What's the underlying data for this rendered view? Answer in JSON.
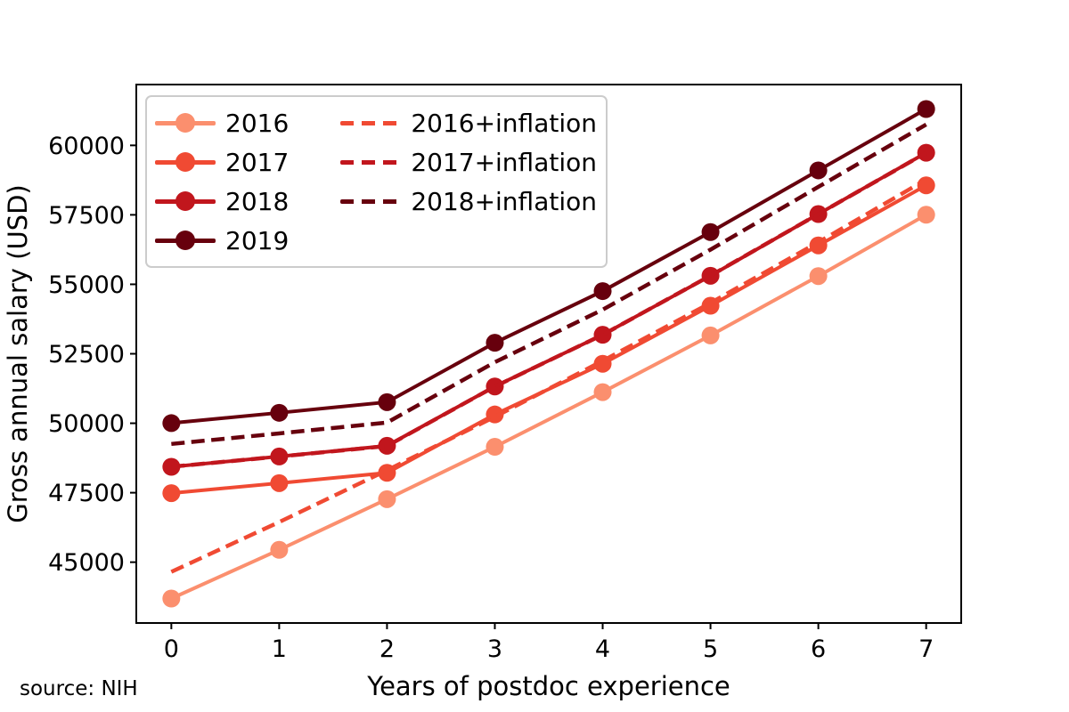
{
  "figure": {
    "source_note": "source: NIH"
  },
  "chart_data": {
    "type": "line",
    "title": "",
    "xlabel": "Years of postdoc experience",
    "ylabel": "Gross annual salary (USD)",
    "grid": false,
    "legend_position": "upper-left",
    "x": [
      0,
      1,
      2,
      3,
      4,
      5,
      6,
      7
    ],
    "xlim": [
      -0.325,
      7.325
    ],
    "ylim": [
      42811,
      62189
    ],
    "xticks": [
      "0",
      "1",
      "2",
      "3",
      "4",
      "5",
      "6",
      "7"
    ],
    "yticks": [
      45000,
      47500,
      50000,
      52500,
      55000,
      57500,
      60000
    ],
    "ytick_labels": [
      "45000",
      "47500",
      "50000",
      "52500",
      "55000",
      "57500",
      "60000"
    ],
    "series": [
      {
        "name": "2016",
        "style": "solid",
        "marker": true,
        "color": "#FB8F6E",
        "values": [
          43692,
          45444,
          47268,
          49152,
          51120,
          53160,
          55296,
          57504
        ]
      },
      {
        "name": "2017",
        "style": "solid",
        "marker": true,
        "color": "#F04A33",
        "values": [
          47484,
          47844,
          48216,
          50316,
          52140,
          54228,
          56400,
          58560
        ]
      },
      {
        "name": "2018",
        "style": "solid",
        "marker": true,
        "color": "#C1161D",
        "values": [
          48432,
          48804,
          49188,
          51324,
          53184,
          55308,
          57528,
          59736
        ]
      },
      {
        "name": "2019",
        "style": "solid",
        "marker": true,
        "color": "#67000D",
        "values": [
          50004,
          50376,
          50760,
          52896,
          54756,
          56880,
          59100,
          61308
        ]
      },
      {
        "name": "2016+inflation",
        "style": "dashed",
        "marker": false,
        "color": "#F04A33",
        "values": [
          44653,
          46444,
          48308,
          50233,
          52245,
          54330,
          56513,
          58769
        ]
      },
      {
        "name": "2017+inflation",
        "style": "dashed",
        "marker": false,
        "color": "#C1161D",
        "values": [
          48434,
          48801,
          49180,
          51322,
          53183,
          55313,
          57528,
          59731
        ]
      },
      {
        "name": "2018+inflation",
        "style": "dashed",
        "marker": false,
        "color": "#67000D",
        "values": [
          49255,
          49634,
          50024,
          52197,
          54088,
          56248,
          58506,
          60751
        ]
      }
    ],
    "legend_columns": [
      [
        0,
        1,
        2,
        3
      ],
      [
        4,
        5,
        6
      ]
    ]
  }
}
